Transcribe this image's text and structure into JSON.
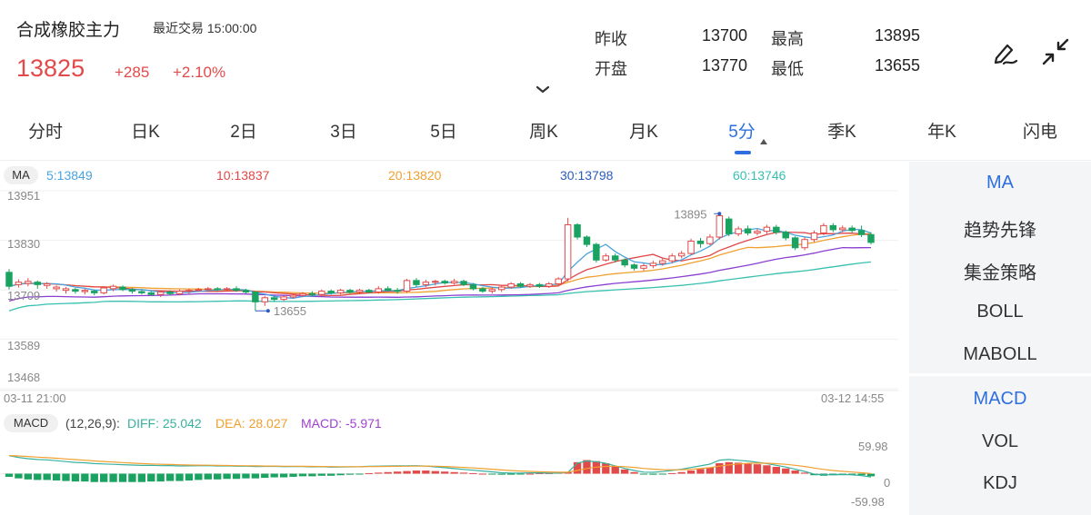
{
  "header": {
    "title": "合成橡胶主力",
    "recent_label": "最近交易",
    "recent_time": "15:00:00",
    "price": "13825",
    "change": "+285",
    "change_pct": "+2.10%",
    "stats": {
      "prev_close_label": "昨收",
      "prev_close": "13700",
      "high_label": "最高",
      "high": "13895",
      "open_label": "开盘",
      "open": "13770",
      "low_label": "最低",
      "low": "13655"
    },
    "icons": [
      "draw-icon",
      "collapse-icon",
      "chevron-down-icon"
    ]
  },
  "tabs": [
    "分时",
    "日K",
    "2日",
    "3日",
    "5日",
    "周K",
    "月K",
    "5分",
    "季K",
    "年K",
    "闪电"
  ],
  "active_tab": "5分",
  "ma_bar": {
    "tag": "MA",
    "ma5": "5:13849",
    "ma10": "10:13837",
    "ma20": "20:13820",
    "ma30": "30:13798",
    "ma60": "60:13746"
  },
  "colors": {
    "up": "#e24a4a",
    "down": "#1aa260",
    "accent": "#2e6fe0",
    "ma5": "#4aa3df",
    "ma10": "#e04848",
    "ma20": "#f0a030",
    "ma30": "#8a3fd0",
    "ma60": "#38c0b0"
  },
  "price_axis": {
    "ticks": [
      "13951",
      "13830",
      "13709",
      "13589",
      "13468"
    ],
    "high_marker": "13895",
    "low_marker": "13655",
    "start_time": "03-11 21:00",
    "end_time": "03-12 14:55"
  },
  "macd_bar": {
    "tag": "MACD",
    "params": "(12,26,9):",
    "diff": "DIFF: 25.042",
    "dea": "DEA: 28.027",
    "macd": "MACD: -5.971",
    "ticks": [
      "59.98",
      "0",
      "-59.98"
    ]
  },
  "side_panel": {
    "main": [
      "MA",
      "趋势先锋",
      "集金策略",
      "BOLL",
      "MABOLL"
    ],
    "sub": [
      "MACD",
      "VOL",
      "KDJ"
    ],
    "active_main": "MA",
    "active_sub": "MACD"
  },
  "chart_data": {
    "type": "candlestick",
    "ylim": [
      13468,
      13951
    ],
    "candles": [
      {
        "o": 13752,
        "c": 13718,
        "h": 13760,
        "l": 13710
      },
      {
        "o": 13722,
        "c": 13728,
        "h": 13735,
        "l": 13715
      },
      {
        "o": 13725,
        "c": 13730,
        "h": 13738,
        "l": 13718
      },
      {
        "o": 13728,
        "c": 13722,
        "h": 13732,
        "l": 13712
      },
      {
        "o": 13720,
        "c": 13724,
        "h": 13728,
        "l": 13712
      },
      {
        "o": 13712,
        "c": 13716,
        "h": 13720,
        "l": 13705
      },
      {
        "o": 13708,
        "c": 13712,
        "h": 13716,
        "l": 13700
      },
      {
        "o": 13710,
        "c": 13706,
        "h": 13714,
        "l": 13700
      },
      {
        "o": 13705,
        "c": 13708,
        "h": 13712,
        "l": 13698
      },
      {
        "o": 13706,
        "c": 13702,
        "h": 13710,
        "l": 13696
      },
      {
        "o": 13702,
        "c": 13714,
        "h": 13718,
        "l": 13698
      },
      {
        "o": 13712,
        "c": 13718,
        "h": 13722,
        "l": 13706
      },
      {
        "o": 13716,
        "c": 13710,
        "h": 13720,
        "l": 13706
      },
      {
        "o": 13710,
        "c": 13706,
        "h": 13714,
        "l": 13700
      },
      {
        "o": 13705,
        "c": 13702,
        "h": 13710,
        "l": 13698
      },
      {
        "o": 13702,
        "c": 13698,
        "h": 13706,
        "l": 13694
      },
      {
        "o": 13698,
        "c": 13704,
        "h": 13708,
        "l": 13692
      },
      {
        "o": 13704,
        "c": 13700,
        "h": 13708,
        "l": 13696
      },
      {
        "o": 13700,
        "c": 13706,
        "h": 13710,
        "l": 13696
      },
      {
        "o": 13706,
        "c": 13708,
        "h": 13712,
        "l": 13700
      },
      {
        "o": 13708,
        "c": 13710,
        "h": 13714,
        "l": 13704
      },
      {
        "o": 13710,
        "c": 13712,
        "h": 13716,
        "l": 13706
      },
      {
        "o": 13712,
        "c": 13710,
        "h": 13716,
        "l": 13706
      },
      {
        "o": 13710,
        "c": 13712,
        "h": 13716,
        "l": 13706
      },
      {
        "o": 13712,
        "c": 13708,
        "h": 13718,
        "l": 13704
      },
      {
        "o": 13708,
        "c": 13704,
        "h": 13712,
        "l": 13700
      },
      {
        "o": 13704,
        "c": 13680,
        "h": 13706,
        "l": 13658
      },
      {
        "o": 13680,
        "c": 13690,
        "h": 13694,
        "l": 13670
      },
      {
        "o": 13690,
        "c": 13686,
        "h": 13694,
        "l": 13680
      },
      {
        "o": 13686,
        "c": 13692,
        "h": 13696,
        "l": 13682
      },
      {
        "o": 13692,
        "c": 13696,
        "h": 13700,
        "l": 13688
      },
      {
        "o": 13696,
        "c": 13700,
        "h": 13704,
        "l": 13692
      },
      {
        "o": 13700,
        "c": 13698,
        "h": 13706,
        "l": 13694
      },
      {
        "o": 13698,
        "c": 13706,
        "h": 13710,
        "l": 13694
      },
      {
        "o": 13706,
        "c": 13702,
        "h": 13710,
        "l": 13698
      },
      {
        "o": 13702,
        "c": 13708,
        "h": 13712,
        "l": 13698
      },
      {
        "o": 13708,
        "c": 13704,
        "h": 13712,
        "l": 13700
      },
      {
        "o": 13704,
        "c": 13708,
        "h": 13712,
        "l": 13700
      },
      {
        "o": 13708,
        "c": 13704,
        "h": 13712,
        "l": 13700
      },
      {
        "o": 13704,
        "c": 13712,
        "h": 13718,
        "l": 13700
      },
      {
        "o": 13712,
        "c": 13708,
        "h": 13718,
        "l": 13704
      },
      {
        "o": 13708,
        "c": 13706,
        "h": 13714,
        "l": 13700
      },
      {
        "o": 13706,
        "c": 13732,
        "h": 13736,
        "l": 13702
      },
      {
        "o": 13732,
        "c": 13722,
        "h": 13738,
        "l": 13716
      },
      {
        "o": 13722,
        "c": 13728,
        "h": 13734,
        "l": 13716
      },
      {
        "o": 13728,
        "c": 13730,
        "h": 13734,
        "l": 13720
      },
      {
        "o": 13730,
        "c": 13726,
        "h": 13734,
        "l": 13722
      },
      {
        "o": 13726,
        "c": 13730,
        "h": 13736,
        "l": 13722
      },
      {
        "o": 13730,
        "c": 13722,
        "h": 13734,
        "l": 13718
      },
      {
        "o": 13722,
        "c": 13712,
        "h": 13726,
        "l": 13708
      },
      {
        "o": 13712,
        "c": 13706,
        "h": 13716,
        "l": 13702
      },
      {
        "o": 13706,
        "c": 13710,
        "h": 13716,
        "l": 13700
      },
      {
        "o": 13710,
        "c": 13716,
        "h": 13720,
        "l": 13704
      },
      {
        "o": 13716,
        "c": 13724,
        "h": 13728,
        "l": 13712
      },
      {
        "o": 13724,
        "c": 13718,
        "h": 13728,
        "l": 13714
      },
      {
        "o": 13718,
        "c": 13722,
        "h": 13726,
        "l": 13714
      },
      {
        "o": 13722,
        "c": 13718,
        "h": 13726,
        "l": 13714
      },
      {
        "o": 13718,
        "c": 13724,
        "h": 13728,
        "l": 13714
      },
      {
        "o": 13724,
        "c": 13736,
        "h": 13740,
        "l": 13720
      },
      {
        "o": 13736,
        "c": 13868,
        "h": 13885,
        "l": 13730
      },
      {
        "o": 13868,
        "c": 13838,
        "h": 13872,
        "l": 13832
      },
      {
        "o": 13838,
        "c": 13820,
        "h": 13842,
        "l": 13814
      },
      {
        "o": 13820,
        "c": 13782,
        "h": 13824,
        "l": 13776
      },
      {
        "o": 13782,
        "c": 13792,
        "h": 13798,
        "l": 13778
      },
      {
        "o": 13792,
        "c": 13782,
        "h": 13798,
        "l": 13776
      },
      {
        "o": 13782,
        "c": 13770,
        "h": 13786,
        "l": 13764
      },
      {
        "o": 13770,
        "c": 13762,
        "h": 13774,
        "l": 13756
      },
      {
        "o": 13762,
        "c": 13768,
        "h": 13774,
        "l": 13756
      },
      {
        "o": 13768,
        "c": 13774,
        "h": 13780,
        "l": 13762
      },
      {
        "o": 13774,
        "c": 13780,
        "h": 13786,
        "l": 13768
      },
      {
        "o": 13780,
        "c": 13792,
        "h": 13798,
        "l": 13774
      },
      {
        "o": 13792,
        "c": 13798,
        "h": 13804,
        "l": 13786
      },
      {
        "o": 13798,
        "c": 13828,
        "h": 13834,
        "l": 13794
      },
      {
        "o": 13828,
        "c": 13822,
        "h": 13836,
        "l": 13812
      },
      {
        "o": 13822,
        "c": 13838,
        "h": 13845,
        "l": 13818
      },
      {
        "o": 13838,
        "c": 13890,
        "h": 13895,
        "l": 13832
      },
      {
        "o": 13882,
        "c": 13846,
        "h": 13888,
        "l": 13840
      },
      {
        "o": 13846,
        "c": 13858,
        "h": 13864,
        "l": 13840
      },
      {
        "o": 13858,
        "c": 13848,
        "h": 13866,
        "l": 13842
      },
      {
        "o": 13848,
        "c": 13852,
        "h": 13858,
        "l": 13842
      },
      {
        "o": 13852,
        "c": 13862,
        "h": 13868,
        "l": 13846
      },
      {
        "o": 13862,
        "c": 13850,
        "h": 13868,
        "l": 13844
      },
      {
        "o": 13850,
        "c": 13836,
        "h": 13854,
        "l": 13830
      },
      {
        "o": 13836,
        "c": 13812,
        "h": 13840,
        "l": 13806
      },
      {
        "o": 13812,
        "c": 13832,
        "h": 13838,
        "l": 13806
      },
      {
        "o": 13832,
        "c": 13848,
        "h": 13854,
        "l": 13826
      },
      {
        "o": 13848,
        "c": 13866,
        "h": 13872,
        "l": 13842
      },
      {
        "o": 13866,
        "c": 13856,
        "h": 13872,
        "l": 13850
      },
      {
        "o": 13856,
        "c": 13860,
        "h": 13866,
        "l": 13850
      },
      {
        "o": 13860,
        "c": 13854,
        "h": 13866,
        "l": 13848
      },
      {
        "o": 13854,
        "c": 13844,
        "h": 13866,
        "l": 13838
      },
      {
        "o": 13844,
        "c": 13825,
        "h": 13850,
        "l": 13820
      }
    ],
    "macd_hist": [
      -6,
      -9,
      -11,
      -12,
      -12,
      -13,
      -14,
      -15,
      -15,
      -16,
      -16,
      -16,
      -16,
      -16,
      -16,
      -15,
      -15,
      -14,
      -14,
      -13,
      -12,
      -11,
      -11,
      -10,
      -10,
      -9,
      -9,
      -8,
      -7,
      -7,
      -6,
      -5,
      -5,
      -4,
      -4,
      -3,
      -2,
      -1,
      1,
      2,
      3,
      4,
      5,
      6,
      6,
      5,
      4,
      3,
      2,
      1,
      0,
      -1,
      -2,
      -2,
      -1,
      0,
      1,
      1,
      2,
      3,
      22,
      26,
      24,
      20,
      14,
      8,
      3,
      -1,
      -2,
      -1,
      1,
      3,
      6,
      9,
      12,
      20,
      22,
      21,
      20,
      18,
      16,
      13,
      10,
      6,
      2,
      -3,
      -4,
      -3,
      -2,
      -2,
      -3,
      -5
    ],
    "macd_ylim": [
      -59.98,
      59.98
    ]
  }
}
